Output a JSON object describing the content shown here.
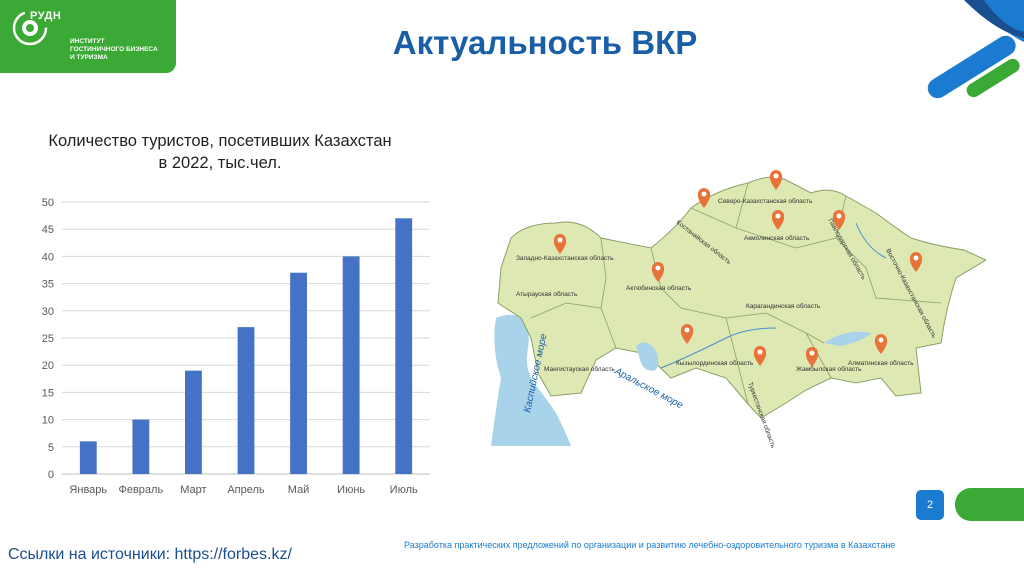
{
  "logo": {
    "brand": "РУДН",
    "institute_lines": [
      "ИНСТИТУТ",
      "ГОСТИНИЧНОГО БИЗНЕСА",
      "И ТУРИЗМА"
    ]
  },
  "slide": {
    "title": "Актуальность ВКР",
    "page_number": "2"
  },
  "chart_title_lines": [
    "Количество туристов, посетивших Казахстан",
    "в 2022, тыс.чел."
  ],
  "chart_data": {
    "type": "bar",
    "title": "Количество туристов, посетивших Казахстан в 2022, тыс.чел.",
    "categories": [
      "Январь",
      "Февраль",
      "Март",
      "Апрель",
      "Май",
      "Июнь",
      "Июль"
    ],
    "values": [
      6,
      10,
      19,
      27,
      37,
      40,
      47
    ],
    "ylim": [
      0,
      50
    ],
    "yticks": [
      0,
      5,
      10,
      15,
      20,
      25,
      30,
      35,
      40,
      45,
      50
    ],
    "grid": true,
    "bar_color": "#4472c4"
  },
  "map": {
    "regions": [
      "Западно-Казахстанская область",
      "Атырауская область",
      "Мангистауская область",
      "Актюбинская область",
      "Костанайская область",
      "Северо-Казахстанская область",
      "Акмолинская область",
      "Павлодарская область",
      "Восточно-Казахстанская область",
      "Карагандинская область",
      "Кызылординская область",
      "Туркестанская область",
      "Жамбылская область",
      "Алматинская область"
    ],
    "water": [
      "Каспийское море",
      "Аральское море"
    ],
    "colors": {
      "land": "#dde8b2",
      "water": "#a9d3ea",
      "pin": "#e8733a"
    }
  },
  "footer": {
    "subtitle": "Разработка практических предложений по организации и развитию лечебно-оздоровительного туризма в Казахстане",
    "sources": "Ссылки на источники: https://forbes.kz/"
  },
  "colors": {
    "title": "#1a5ea8",
    "green": "#3aa935",
    "blue": "#1a7bd0"
  }
}
